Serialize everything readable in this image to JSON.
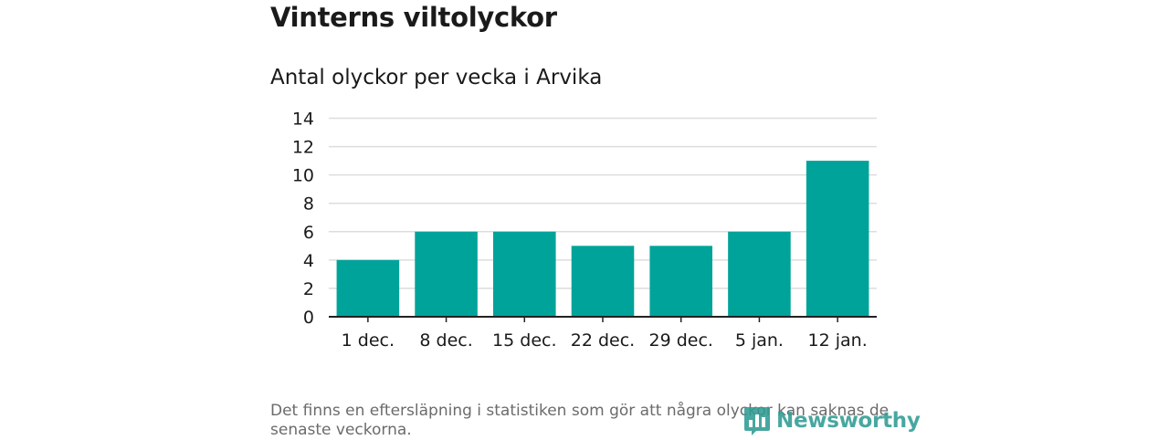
{
  "header": {
    "title": "Vinterns viltolyckor",
    "subtitle": "Antal olyckor per vecka i Arvika"
  },
  "footer": {
    "note": "Det finns en eftersläpning i statistiken som gör att några olyckor kan saknas de senaste veckorna.",
    "brand": "Newsworthy"
  },
  "colors": {
    "bar": "#00a39a",
    "grid": "#dddddd",
    "axis": "#222222",
    "brand": "#2f9c93"
  },
  "chart_data": {
    "type": "bar",
    "title": "Antal olyckor per vecka i Arvika",
    "xlabel": "",
    "ylabel": "",
    "categories": [
      "1 dec.",
      "8 dec.",
      "15 dec.",
      "22 dec.",
      "29 dec.",
      "5 jan.",
      "12 jan."
    ],
    "values": [
      4,
      6,
      6,
      5,
      5,
      6,
      11
    ],
    "ylim": [
      0,
      14
    ],
    "yticks": [
      0,
      2,
      4,
      6,
      8,
      10,
      12,
      14
    ],
    "grid": true,
    "legend": "none"
  }
}
